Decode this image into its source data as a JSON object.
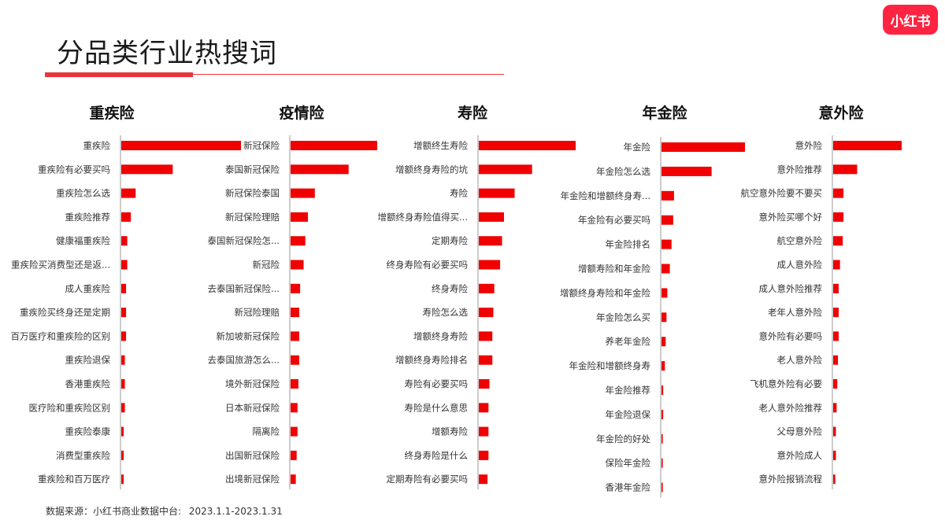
{
  "page": {
    "title": "分品类行业热搜词",
    "logo": "小红书",
    "source_label": "数据来源：小红书商业数据中台:",
    "source_range": "2023.1.1-2023.1.31"
  },
  "colors": {
    "accent": "#e8343c",
    "bar": "#f00000",
    "logo_bg": "#ff2442"
  },
  "chart_data": [
    {
      "type": "bar",
      "orientation": "horizontal",
      "title": "重疾险",
      "categories": [
        "重疾险",
        "重疾险有必要买吗",
        "重疾险怎么选",
        "重疾险推荐",
        "健康福重疾险",
        "重疾险买消费型还是返...",
        "成人重疾险",
        "重疾险买终身还是定期",
        "百万医疗和重疾险的区别",
        "重疾险退保",
        "香港重疾险",
        "医疗险和重疾险区别",
        "重疾险泰康",
        "消费型重疾险",
        "重疾险和百万医疗"
      ],
      "values": [
        100,
        43,
        12,
        8,
        5,
        5,
        4,
        4,
        4,
        3,
        3,
        3,
        2,
        2,
        2
      ]
    },
    {
      "type": "bar",
      "orientation": "horizontal",
      "title": "疫情险",
      "categories": [
        "新冠保险",
        "泰国新冠保险",
        "新冠保险泰国",
        "新冠保险理赔",
        "泰国新冠保险怎...",
        "新冠险",
        "去泰国新冠保险...",
        "新冠险理赔",
        "新加坡新冠保险",
        "去泰国旅游怎么...",
        "境外新冠保险",
        "日本新冠保险",
        "隔离险",
        "出国新冠保险",
        "出境新冠保险"
      ],
      "values": [
        100,
        67,
        28,
        20,
        17,
        15,
        11,
        10,
        10,
        10,
        9,
        8,
        8,
        7,
        6
      ]
    },
    {
      "type": "bar",
      "orientation": "horizontal",
      "title": "寿险",
      "categories": [
        "增额终生寿险",
        "增额终身寿险的坑",
        "寿险",
        "增额终身寿险值得买...",
        "定期寿险",
        "终身寿险有必要买吗",
        "终身寿险",
        "寿险怎么选",
        "增额终身寿险",
        "增额终身寿险排名",
        "寿险有必要买吗",
        "寿险是什么意思",
        "增额寿险",
        "终身寿险是什么",
        "定期寿险有必要买吗"
      ],
      "values": [
        100,
        55,
        37,
        26,
        24,
        22,
        16,
        15,
        14,
        14,
        11,
        10,
        10,
        10,
        9
      ]
    },
    {
      "type": "bar",
      "orientation": "horizontal",
      "title": "年金险",
      "categories": [
        "年金险",
        "年金险怎么选",
        "年金险和增额终身寿...",
        "年金险有必要买吗",
        "年金险排名",
        "增额寿险和年金险",
        "增额终身寿险和年金险",
        "年金险怎么买",
        "养老年金险",
        "年金险和增额终身寿",
        "年金险推荐",
        "年金险退保",
        "年金险的好处",
        "保险年金险",
        "香港年金险"
      ],
      "values": [
        100,
        60,
        15,
        14,
        12,
        10,
        7,
        6,
        5,
        4,
        2,
        2,
        1.5,
        1.5,
        1.5
      ]
    },
    {
      "type": "bar",
      "orientation": "horizontal",
      "title": "意外险",
      "categories": [
        "意外险",
        "意外险推荐",
        "航空意外险要不要买",
        "意外险买哪个好",
        "航空意外险",
        "成人意外险",
        "成人意外险推荐",
        "老年人意外险",
        "意外险有必要吗",
        "老人意外险",
        "飞机意外险有必要",
        "老人意外险推荐",
        "父母意外险",
        "意外险成人",
        "意外险报销流程"
      ],
      "values": [
        100,
        35,
        15,
        15,
        14,
        10,
        8,
        8,
        8,
        7,
        6,
        5,
        4,
        4,
        3
      ]
    }
  ]
}
